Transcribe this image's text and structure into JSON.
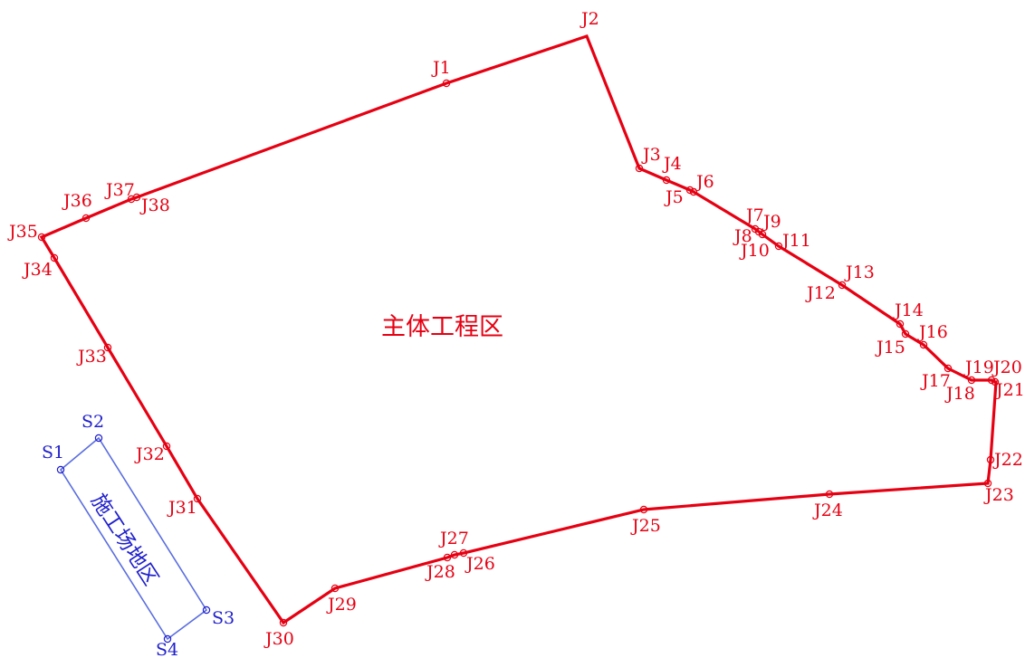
{
  "main_area": {
    "label": "主体工程区",
    "color": "#e60012",
    "points": [
      "J1",
      "J2",
      "J3",
      "J4",
      "J5",
      "J6",
      "J7",
      "J8",
      "J9",
      "J10",
      "J11",
      "J12",
      "J13",
      "J14",
      "J15",
      "J16",
      "J17",
      "J18",
      "J19",
      "J20",
      "J21",
      "J22",
      "J23",
      "J24",
      "J25",
      "J26",
      "J27",
      "J28",
      "J29",
      "J30",
      "J31",
      "J32",
      "J33",
      "J34",
      "J35",
      "J36",
      "J37",
      "J38"
    ]
  },
  "site_area": {
    "label": "施工场地区",
    "color": "#1f1fcc",
    "points": [
      "S1",
      "S2",
      "S3",
      "S4"
    ]
  }
}
